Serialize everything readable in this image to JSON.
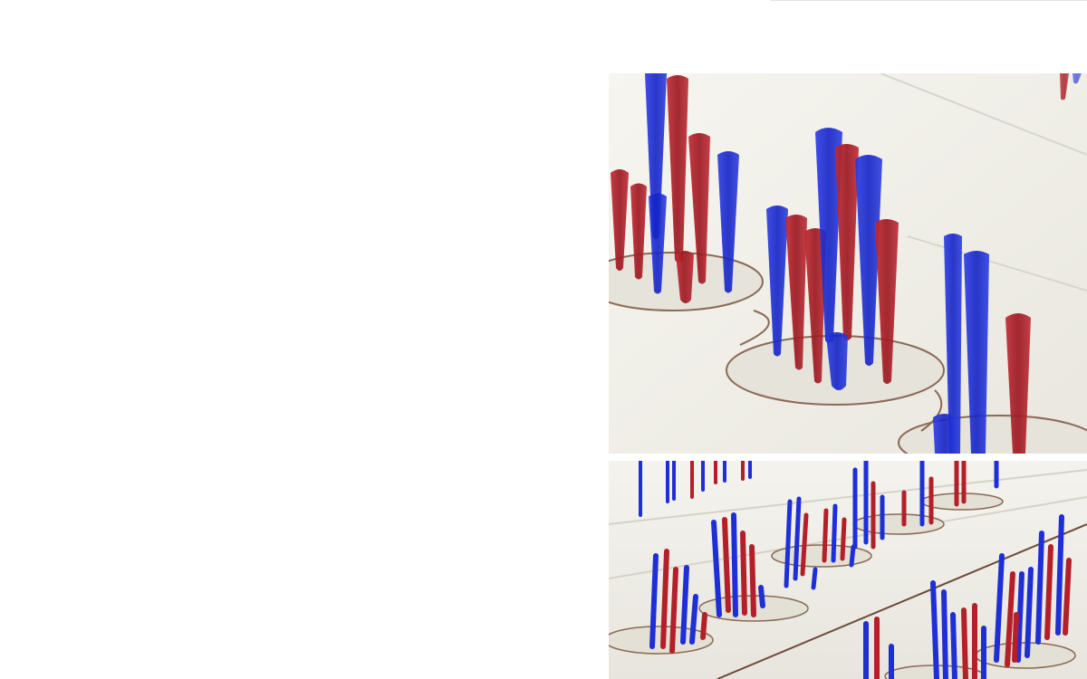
{
  "colors": {
    "page_background": "#ffffff",
    "board": "#efede6",
    "board_shadow": "#d9d6cd",
    "hole_fill": "#e8e5dc",
    "hole_edge": "#8a6a55",
    "blue_piece": "#1f2fd6",
    "red_piece": "#b3202a"
  },
  "images": [
    {
      "name": "acrylic-pieces-closeup",
      "subject": "red-and-blue-acrylic-pieces"
    },
    {
      "name": "acrylic-pieces-board-overview",
      "subject": "red-and-blue-acrylic-pieces"
    }
  ]
}
